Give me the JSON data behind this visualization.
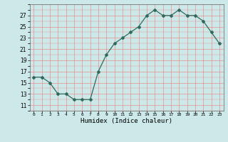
{
  "x": [
    0,
    1,
    2,
    3,
    4,
    5,
    6,
    7,
    8,
    9,
    10,
    11,
    12,
    13,
    14,
    15,
    16,
    17,
    18,
    19,
    20,
    21,
    22,
    23
  ],
  "y": [
    16,
    16,
    15,
    13,
    13,
    12,
    12,
    12,
    17,
    20,
    22,
    23,
    24,
    25,
    27,
    28,
    27,
    27,
    28,
    27,
    27,
    26,
    24,
    22
  ],
  "xlabel": "Humidex (Indice chaleur)",
  "line_color": "#2e6b5e",
  "marker": "D",
  "marker_size": 2,
  "bg_color": "#cce8e8",
  "grid_color_minor": "#f0a0a0",
  "ylim": [
    10,
    29
  ],
  "xlim": [
    -0.5,
    23.5
  ],
  "yticks": [
    11,
    13,
    15,
    17,
    19,
    21,
    23,
    25,
    27
  ],
  "xticks": [
    0,
    1,
    2,
    3,
    4,
    5,
    6,
    7,
    8,
    9,
    10,
    11,
    12,
    13,
    14,
    15,
    16,
    17,
    18,
    19,
    20,
    21,
    22,
    23
  ]
}
